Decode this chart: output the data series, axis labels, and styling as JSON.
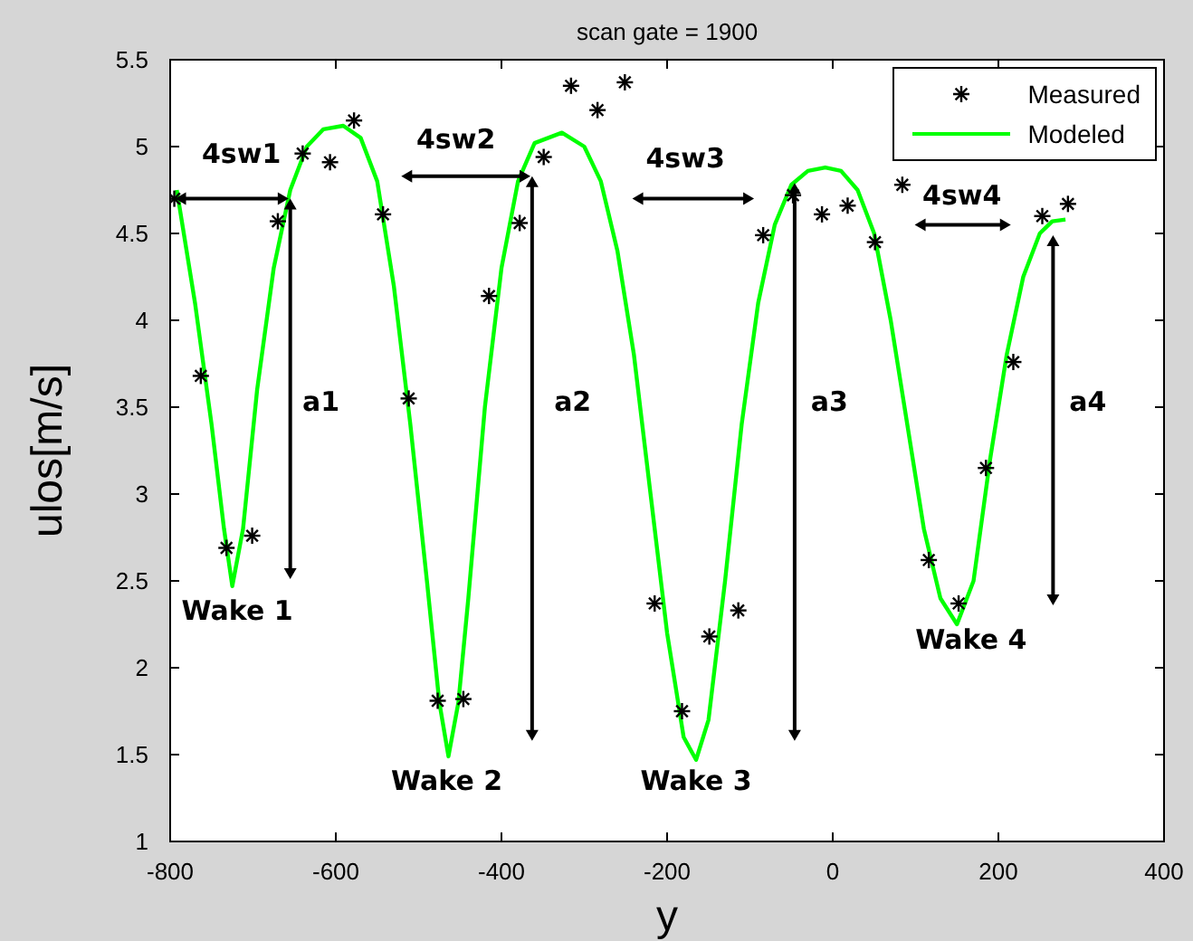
{
  "chart_data": {
    "type": "scatter",
    "title": "scan gate = 1900",
    "xlabel": "y",
    "ylabel": "ulos[m/s]",
    "xlim": [
      -800,
      400
    ],
    "xticks": [
      -800,
      -600,
      -400,
      -200,
      0,
      200,
      400
    ],
    "ylim": [
      1,
      5.5
    ],
    "yticks": [
      1,
      1.5,
      2,
      2.5,
      3,
      3.5,
      4,
      4.5,
      5,
      5.5
    ],
    "grid": false,
    "legend": "top right",
    "series": [
      {
        "name": "Measured",
        "marker": "cross",
        "color": "#000000",
        "x": [
          -795,
          -763,
          -732,
          -701,
          -670,
          -640,
          -607,
          -578,
          -543,
          -512,
          -477,
          -446,
          -415,
          -378,
          -349,
          -316,
          -284,
          -251,
          -215,
          -182,
          -149,
          -114,
          -84,
          -48,
          -13,
          18,
          51,
          84,
          116,
          152,
          185,
          218,
          253,
          284
        ],
        "values": [
          4.7,
          3.68,
          2.69,
          2.76,
          4.57,
          4.96,
          4.91,
          5.15,
          4.61,
          3.55,
          1.81,
          1.82,
          4.14,
          4.56,
          4.94,
          5.35,
          5.21,
          5.37,
          2.37,
          1.75,
          2.18,
          2.33,
          4.49,
          4.72,
          4.61,
          4.66,
          4.45,
          4.78,
          2.62,
          2.37,
          3.15,
          3.76,
          4.6,
          4.67
        ]
      },
      {
        "name": "Modeled",
        "type": "line",
        "marker": "none",
        "line_style": "solid",
        "color": "#00ff00",
        "x": [
          -792,
          -770,
          -750,
          -735,
          -725,
          -712,
          -695,
          -675,
          -655,
          -635,
          -615,
          -591,
          -570,
          -550,
          -530,
          -510,
          -490,
          -475,
          -464,
          -452,
          -440,
          -420,
          -400,
          -380,
          -360,
          -327,
          -300,
          -280,
          -260,
          -240,
          -220,
          -200,
          -180,
          -165,
          -150,
          -130,
          -110,
          -90,
          -70,
          -50,
          -30,
          -9,
          10,
          30,
          50,
          70,
          90,
          110,
          130,
          150,
          170,
          190,
          210,
          230,
          250,
          265,
          281
        ],
        "values": [
          4.75,
          4.1,
          3.4,
          2.8,
          2.47,
          2.8,
          3.6,
          4.3,
          4.75,
          5.0,
          5.1,
          5.12,
          5.05,
          4.8,
          4.2,
          3.4,
          2.5,
          1.8,
          1.49,
          1.8,
          2.4,
          3.5,
          4.3,
          4.8,
          5.02,
          5.08,
          5.0,
          4.8,
          4.4,
          3.8,
          3.0,
          2.2,
          1.6,
          1.47,
          1.7,
          2.5,
          3.4,
          4.1,
          4.55,
          4.78,
          4.86,
          4.88,
          4.86,
          4.75,
          4.5,
          4.0,
          3.4,
          2.8,
          2.4,
          2.25,
          2.5,
          3.2,
          3.8,
          4.25,
          4.5,
          4.57,
          4.58
        ]
      }
    ],
    "annotations": [
      "4sw1",
      "4sw2",
      "4sw3",
      "4sw4",
      "a1",
      "a2",
      "a3",
      "a4",
      "Wake 1",
      "Wake 2",
      "Wake 3",
      "Wake 4"
    ]
  }
}
